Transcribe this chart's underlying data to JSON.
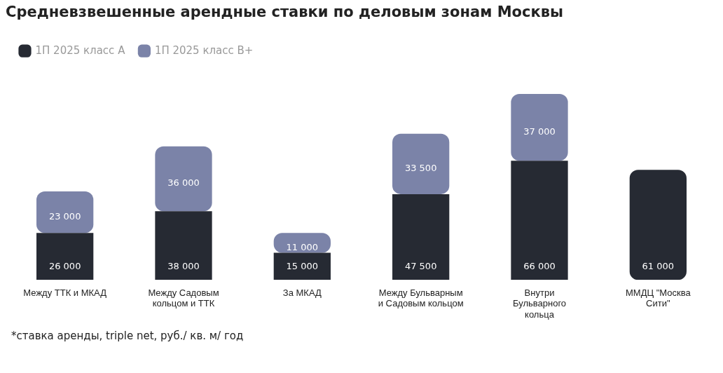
{
  "chart_data": {
    "type": "bar",
    "title": "Средневзвешенные арендные ставки по деловым зонам Москвы",
    "stacked": true,
    "legend": "top left",
    "categories": [
      "Между ТТК и МКАД",
      "Между Садовым кольцом и ТТК",
      "За МКАД",
      "Между Бульварным и Садовым кольцом",
      "Внутри Бульварного кольца",
      "ММДЦ \"Москва Сити\""
    ],
    "series": [
      {
        "name": "1П 2025 класс А",
        "color": "#262a33",
        "values": [
          26000,
          38000,
          15000,
          47500,
          66000,
          61000
        ],
        "value_labels": [
          "26 000",
          "38 000",
          "15 000",
          "47 500",
          "66 000",
          "61 000"
        ]
      },
      {
        "name": "1П 2025 класс В+",
        "color": "#7b83a8",
        "values": [
          23000,
          36000,
          11000,
          33500,
          37000,
          null
        ],
        "value_labels": [
          "23 000",
          "36 000",
          "11 000",
          "33 500",
          "37 000",
          null
        ]
      }
    ],
    "annotations": [
      "*ставка аренды, triple net, руб./ кв. м/ год"
    ]
  }
}
